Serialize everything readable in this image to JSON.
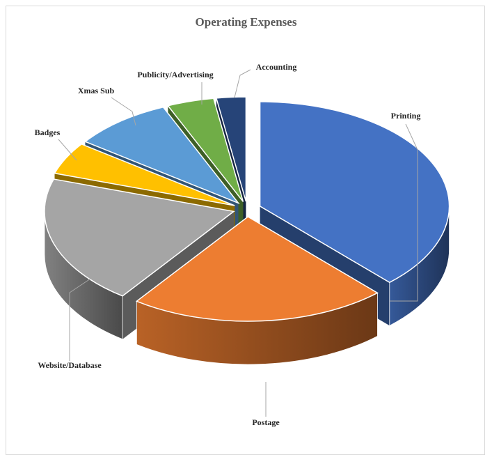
{
  "chart_data": {
    "type": "pie",
    "title": "Operating Expenses",
    "style": "3d-exploded",
    "legend": "none",
    "data_labels": "category-names-with-leader-lines",
    "slices": [
      {
        "label": "Printing",
        "value": 38,
        "color": "#4472c4"
      },
      {
        "label": "Postage",
        "value": 22,
        "color": "#ed7d31"
      },
      {
        "label": "Website/Database",
        "value": 20,
        "color": "#a5a5a5"
      },
      {
        "label": "Badges",
        "value": 5,
        "color": "#ffc000"
      },
      {
        "label": "Xmas Sub",
        "value": 8.5,
        "color": "#5b9bd5"
      },
      {
        "label": "Publicity/Advertising",
        "value": 4,
        "color": "#70ad47"
      },
      {
        "label": "Accounting",
        "value": 2.5,
        "color": "#264478"
      }
    ]
  }
}
